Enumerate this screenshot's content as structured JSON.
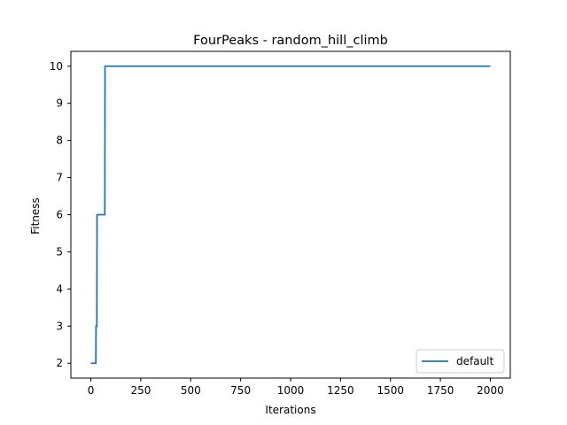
{
  "chart_data": {
    "type": "line",
    "title": "FourPeaks - random_hill_climb",
    "xlabel": "Iterations",
    "ylabel": "Fitness",
    "xlim": [
      -100,
      2100
    ],
    "ylim": [
      1.6,
      10.4
    ],
    "xticks": [
      0,
      250,
      500,
      750,
      1000,
      1250,
      1500,
      1750,
      2000
    ],
    "yticks": [
      2,
      3,
      4,
      5,
      6,
      7,
      8,
      9,
      10
    ],
    "grid": false,
    "legend_position": "lower right",
    "series": [
      {
        "name": "default",
        "color": "#1f77b4",
        "x": [
          0,
          25,
          26,
          30,
          31,
          70,
          71,
          2000
        ],
        "y": [
          2,
          2,
          3,
          3,
          6,
          6,
          10,
          10
        ]
      }
    ]
  }
}
